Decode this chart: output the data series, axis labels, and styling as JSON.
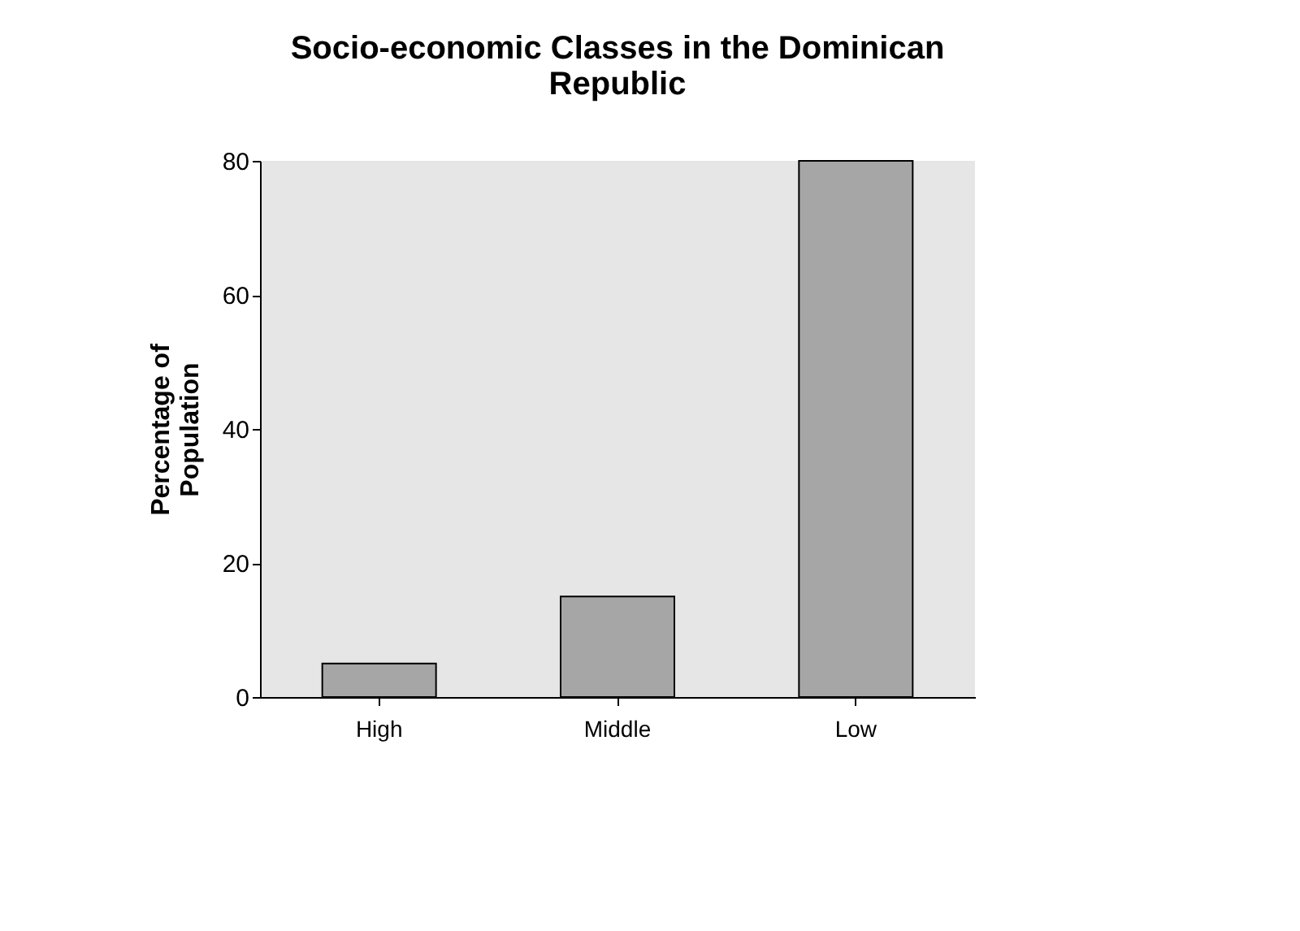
{
  "chart_data": {
    "type": "bar",
    "title": [
      "Socio-economic Classes in the Dominican",
      "Republic"
    ],
    "ylabel": [
      "Percentage of",
      "Population"
    ],
    "categories": [
      "High",
      "Middle",
      "Low"
    ],
    "values": [
      5,
      15,
      80
    ],
    "color": "#a6a6a6",
    "ylim": [
      0,
      80
    ],
    "yticks": [
      0,
      20,
      40,
      60,
      80
    ],
    "grid": false
  }
}
